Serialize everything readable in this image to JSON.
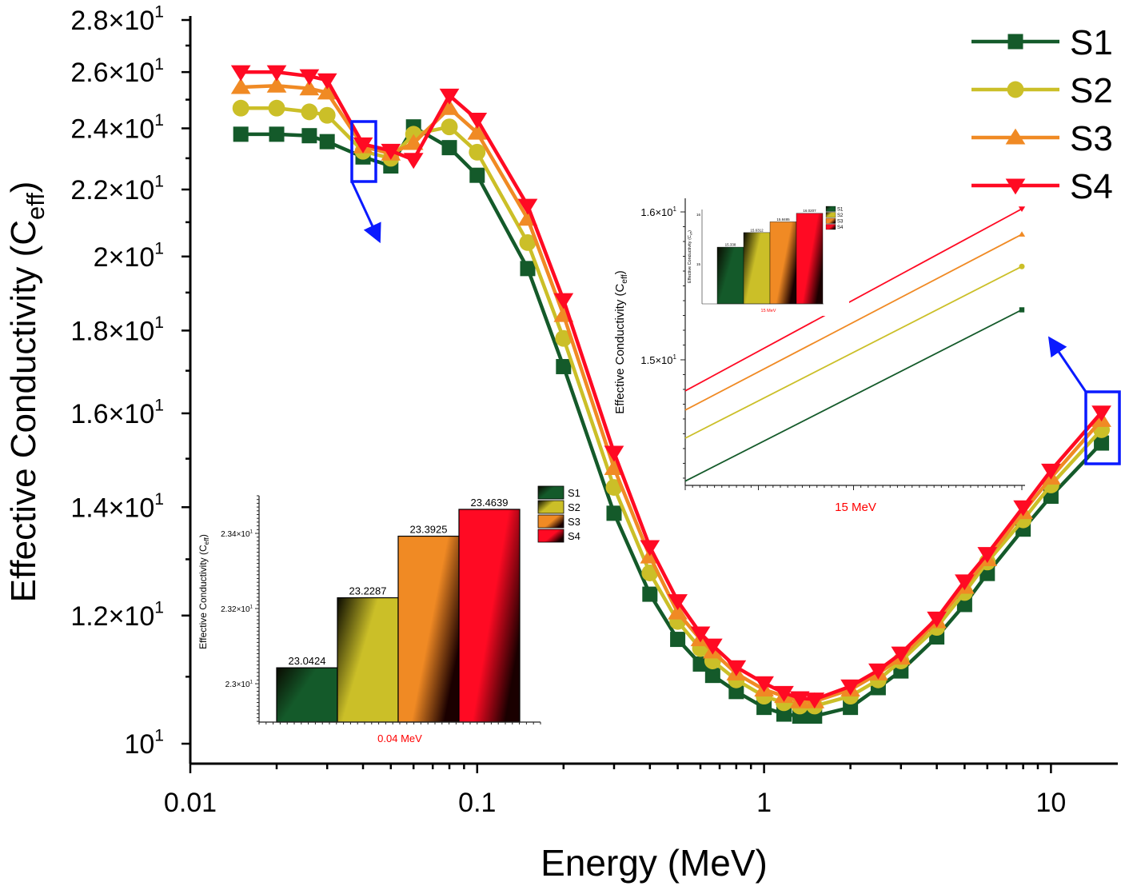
{
  "colors": {
    "S1": "#145a2a",
    "S2": "#cbbf28",
    "S3": "#f08a24",
    "S4": "#ff0a23",
    "highlight": "#0a1aff",
    "inset_xlabel": "#ff0000"
  },
  "chart_data": [
    {
      "type": "line",
      "xlabel": "Energy (MeV)",
      "ylabel": {
        "text": "Effective Conductivity (C",
        "sub": "eff",
        "close": ")"
      },
      "xscale": "log",
      "yscale": "log",
      "xlim": [
        0.01,
        17.1
      ],
      "ylim": [
        9.72,
        28.16
      ],
      "x_ticks": [
        {
          "value": 0.01,
          "label": "0.01"
        },
        {
          "value": 0.1,
          "label": "0.1"
        },
        {
          "value": 1,
          "label": "1"
        },
        {
          "value": 10,
          "label": "10"
        }
      ],
      "y_ticks": [
        {
          "value": 10,
          "mantissa": "10",
          "exp": "1"
        },
        {
          "value": 12,
          "mantissa": "1.2×10",
          "exp": "1"
        },
        {
          "value": 14,
          "mantissa": "1.4×10",
          "exp": "1"
        },
        {
          "value": 16,
          "mantissa": "1.6×10",
          "exp": "1"
        },
        {
          "value": 18,
          "mantissa": "1.8×10",
          "exp": "1"
        },
        {
          "value": 20,
          "mantissa": "2×10",
          "exp": "1"
        },
        {
          "value": 22,
          "mantissa": "2.2×10",
          "exp": "1"
        },
        {
          "value": 24,
          "mantissa": "2.4×10",
          "exp": "1"
        },
        {
          "value": 26,
          "mantissa": "2.6×10",
          "exp": "1"
        },
        {
          "value": 28,
          "mantissa": "2.8×10",
          "exp": "1"
        }
      ],
      "legend": "top-right",
      "grid": false,
      "x": [
        0.015,
        0.02,
        0.026,
        0.03,
        0.04,
        0.05,
        0.06,
        0.08,
        0.1,
        0.15,
        0.2,
        0.3,
        0.4,
        0.5,
        0.6,
        0.662,
        0.8,
        1,
        1.173,
        1.332,
        1.5,
        2,
        2.5,
        3,
        4,
        5,
        6,
        8,
        10,
        15
      ],
      "series": [
        {
          "name": "S1",
          "marker": "square",
          "values": [
            23.8,
            23.8,
            23.75,
            23.55,
            23.0424,
            22.75,
            24.05,
            23.35,
            22.45,
            19.66,
            17.1,
            13.88,
            12.37,
            11.6,
            11.2,
            11.02,
            10.77,
            10.53,
            10.43,
            10.4,
            10.4,
            10.53,
            10.83,
            11.09,
            11.64,
            12.19,
            12.74,
            13.57,
            14.22,
            15.338
          ]
        },
        {
          "name": "S2",
          "marker": "circle",
          "values": [
            24.7,
            24.7,
            24.57,
            24.45,
            23.2287,
            23.0,
            23.8,
            24.05,
            23.2,
            20.4,
            17.8,
            14.4,
            12.75,
            11.9,
            11.45,
            11.25,
            10.95,
            10.7,
            10.6,
            10.55,
            10.55,
            10.7,
            10.95,
            11.25,
            11.8,
            12.4,
            12.95,
            13.75,
            14.45,
            15.6312
          ]
        },
        {
          "name": "S3",
          "marker": "triangle-up",
          "values": [
            25.45,
            25.5,
            25.4,
            25.25,
            23.3925,
            23.15,
            23.5,
            24.7,
            23.85,
            21.1,
            18.4,
            14.8,
            13.05,
            12.05,
            11.6,
            11.4,
            11.05,
            10.8,
            10.7,
            10.62,
            10.62,
            10.8,
            11.05,
            11.3,
            11.9,
            12.5,
            13.0,
            13.9,
            14.6,
            15.8485
          ]
        },
        {
          "name": "S4",
          "marker": "triangle-down",
          "values": [
            26.0,
            26.0,
            25.85,
            25.7,
            23.4639,
            23.25,
            22.95,
            25.15,
            24.3,
            21.5,
            18.8,
            15.13,
            13.23,
            12.25,
            11.7,
            11.5,
            11.15,
            10.9,
            10.75,
            10.67,
            10.65,
            10.85,
            11.1,
            11.37,
            11.95,
            12.6,
            13.1,
            14.0,
            14.75,
            16.0207
          ]
        }
      ]
    },
    {
      "type": "bar",
      "xlabel": "0.04 MeV",
      "ylabel": {
        "text": "Effective Conductivity (C",
        "sub": "eff",
        "close": ")"
      },
      "ylim": [
        22.898,
        23.5
      ],
      "y_ticks": [
        {
          "value": 23.0,
          "mantissa": "2.3×10",
          "exp": "1"
        },
        {
          "value": 23.2,
          "mantissa": "2.32×10",
          "exp": "1"
        },
        {
          "value": 23.4,
          "mantissa": "2.34×10",
          "exp": "1"
        }
      ],
      "categories": [
        "S1",
        "S2",
        "S3",
        "S4"
      ],
      "values": [
        23.0424,
        23.2287,
        23.3925,
        23.4639
      ],
      "labels": [
        "23.0424",
        "23.2287",
        "23.3925",
        "23.4639"
      ],
      "legend": "top-right"
    },
    {
      "type": "line",
      "xlabel": "15 MeV",
      "ylabel": {
        "text": "Effective Conductivity (C",
        "sub": "eff",
        "close": ")"
      },
      "ylim": [
        14.151,
        16.092
      ],
      "y_ticks": [
        {
          "value": 15,
          "mantissa": "1.5×10",
          "exp": "1"
        },
        {
          "value": 16,
          "mantissa": "1.6×10",
          "exp": "1"
        }
      ],
      "series": [
        {
          "name": "S1",
          "values": [
            14.18,
            15.338
          ]
        },
        {
          "name": "S2",
          "values": [
            14.47,
            15.6312
          ]
        },
        {
          "name": "S3",
          "values": [
            14.66,
            15.8485
          ]
        },
        {
          "name": "S4",
          "values": [
            14.79,
            16.0207
          ]
        }
      ]
    },
    {
      "type": "bar",
      "xlabel": "15 MeV",
      "ylabel": {
        "text": "Effective Conductivity (C",
        "sub": "eff",
        "close": ")"
      },
      "ylim": [
        14.194,
        16.097
      ],
      "y_ticks": [
        {
          "value": 15,
          "label": "15"
        },
        {
          "value": 16,
          "label": "16"
        }
      ],
      "categories": [
        "S1",
        "S2",
        "S3",
        "S4"
      ],
      "values": [
        15.338,
        15.6312,
        15.8485,
        16.0207
      ],
      "labels": [
        "15.338",
        "15.6312",
        "15.8485",
        "16.0207"
      ],
      "legend": "top-right"
    }
  ]
}
